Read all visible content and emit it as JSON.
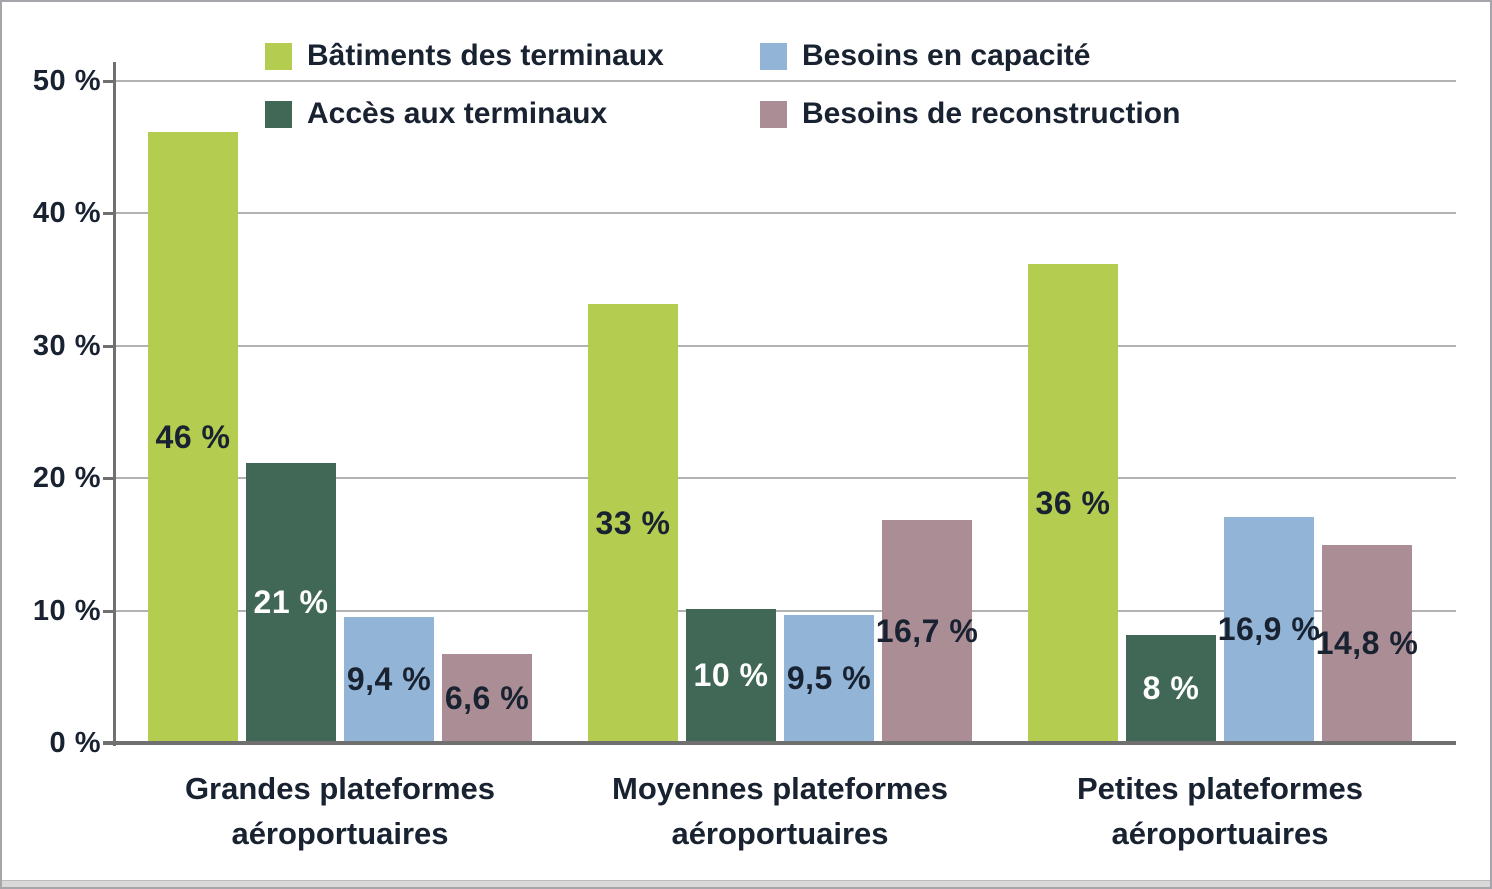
{
  "chart_data": {
    "type": "bar",
    "title": "",
    "xlabel": "",
    "ylabel": "",
    "ylim": [
      0,
      50
    ],
    "y_tick_values": [
      0,
      10,
      20,
      30,
      40,
      50
    ],
    "y_tick_labels": [
      "0 %",
      "10 %",
      "20 %",
      "30 %",
      "40 %",
      "50 %"
    ],
    "grid": true,
    "legend_position": "top",
    "categories": [
      [
        "Grandes plateformes",
        "aéroportuaires"
      ],
      [
        "Moyennes plateformes",
        "aéroportuaires"
      ],
      [
        "Petites plateformes",
        "aéroportuaires"
      ]
    ],
    "series": [
      {
        "name": "Bâtiments des terminaux",
        "color": "#b4cc50",
        "label_color": "#192230",
        "values": [
          46,
          33,
          36
        ],
        "value_labels": [
          "46 %",
          "33 %",
          "36 %"
        ]
      },
      {
        "name": "Accès aux terminaux",
        "color": "#416856",
        "label_color": "#ffffff",
        "values": [
          21,
          10,
          8
        ],
        "value_labels": [
          "21 %",
          "10 %",
          "8 %"
        ]
      },
      {
        "name": "Besoins en capacité",
        "color": "#92b4d6",
        "label_color": "#192230",
        "values": [
          9.4,
          9.5,
          16.9
        ],
        "value_labels": [
          "9,4 %",
          "9,5 %",
          "16,9 %"
        ]
      },
      {
        "name": "Besoins de reconstruction",
        "color": "#aa8d95",
        "label_color": "#192230",
        "values": [
          6.6,
          16.7,
          14.8
        ],
        "value_labels": [
          "6,6 %",
          "16,7 %",
          "14,8 %"
        ]
      }
    ],
    "legend": {
      "rows": [
        [
          {
            "label": "Bâtiments des terminaux",
            "color": "#b4cc50",
            "series_index": 0
          },
          {
            "label": "Besoins en capacité",
            "color": "#92b4d6",
            "series_index": 2
          }
        ],
        [
          {
            "label": "Accès aux terminaux",
            "color": "#416856",
            "series_index": 1
          },
          {
            "label": "Besoins de reconstruction",
            "color": "#aa8d95",
            "series_index": 3
          }
        ]
      ]
    }
  },
  "palette": {
    "text": "#192230",
    "grid_line": "#b2b2b2",
    "axis_line": "#707070",
    "background": "#ffffff",
    "frame_border": "#a6a6aa",
    "bottom_strip": "#d9d9d9"
  }
}
